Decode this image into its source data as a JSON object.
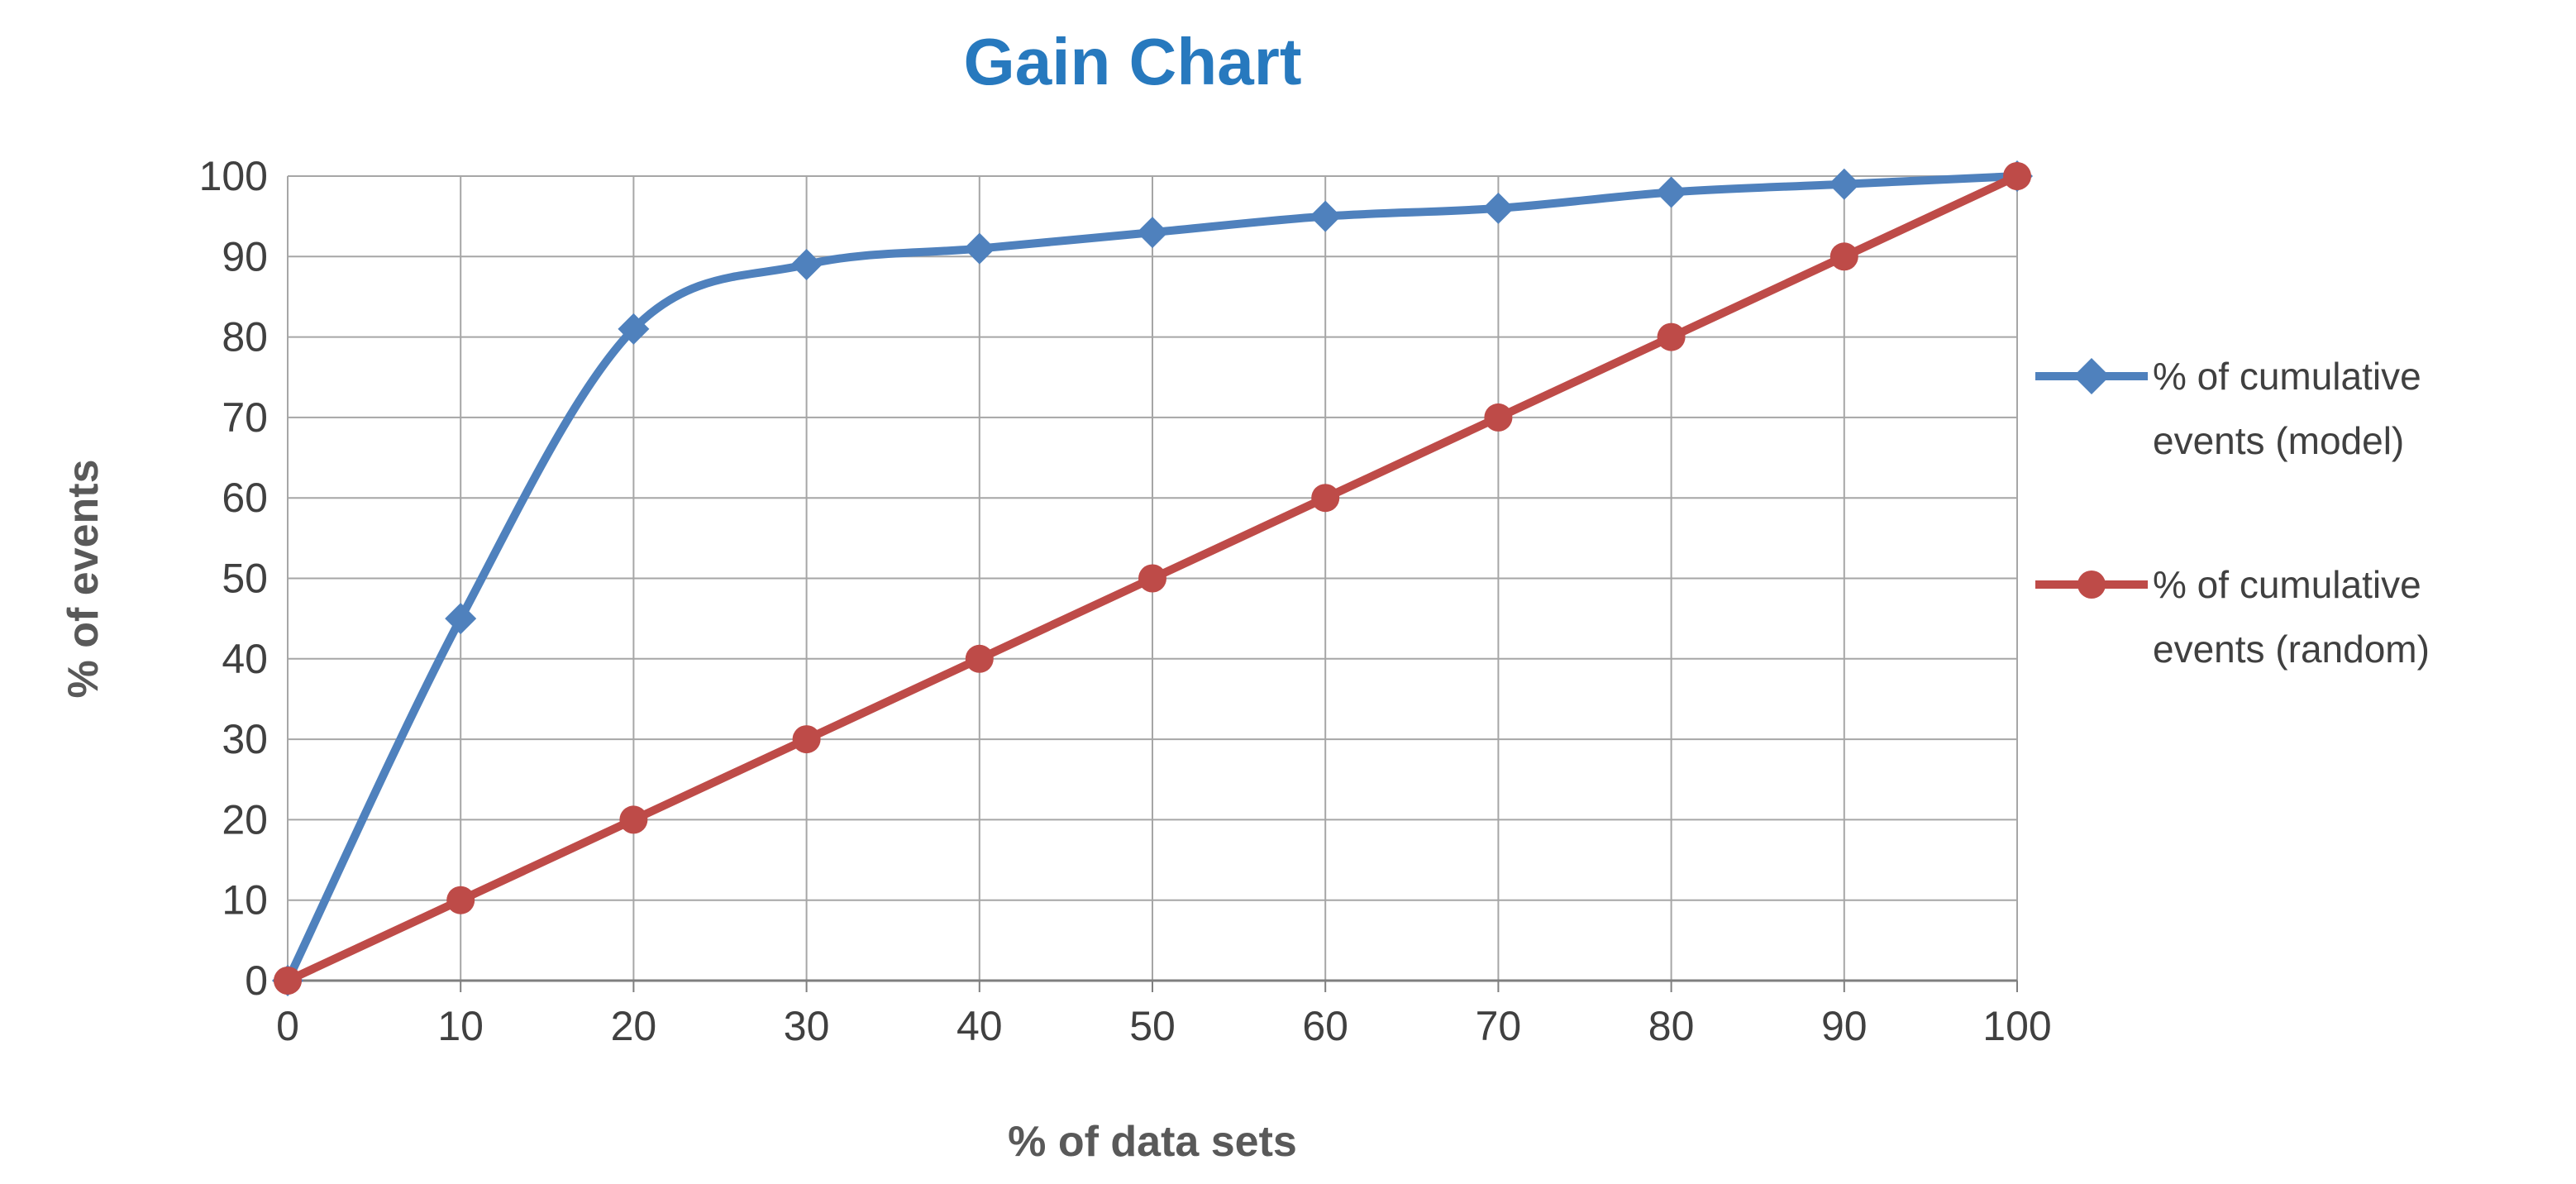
{
  "page_title": "Gain Chart",
  "chart_data": {
    "type": "line",
    "title": "Gain Chart",
    "xlabel": "% of data sets",
    "ylabel": "% of events",
    "xlim": [
      0,
      100
    ],
    "ylim": [
      0,
      100
    ],
    "x_ticks": [
      0,
      10,
      20,
      30,
      40,
      50,
      60,
      70,
      80,
      90,
      100
    ],
    "y_ticks": [
      0,
      10,
      20,
      30,
      40,
      50,
      60,
      70,
      80,
      90,
      100
    ],
    "grid": true,
    "legend_position": "right",
    "x": [
      0,
      10,
      20,
      30,
      40,
      50,
      60,
      70,
      80,
      90,
      100
    ],
    "series": [
      {
        "name": "% of cumulative events (model)",
        "legend_lines": [
          "% of cumulative",
          "events (model)"
        ],
        "color": "#4F81BD",
        "marker": "diamond",
        "smooth": true,
        "values": [
          0,
          45,
          81,
          89,
          91,
          93,
          95,
          96,
          98,
          99,
          100
        ]
      },
      {
        "name": "% of cumulative events (random)",
        "legend_lines": [
          "% of cumulative",
          "events (random)"
        ],
        "color": "#BE4B48",
        "marker": "circle",
        "smooth": false,
        "values": [
          0,
          10,
          20,
          30,
          40,
          50,
          60,
          70,
          80,
          90,
          100
        ]
      }
    ],
    "colors": {
      "title": "#2779BE",
      "grid": "#A6A6A6",
      "axis": "#7F7F7F",
      "text": "#404040"
    }
  }
}
